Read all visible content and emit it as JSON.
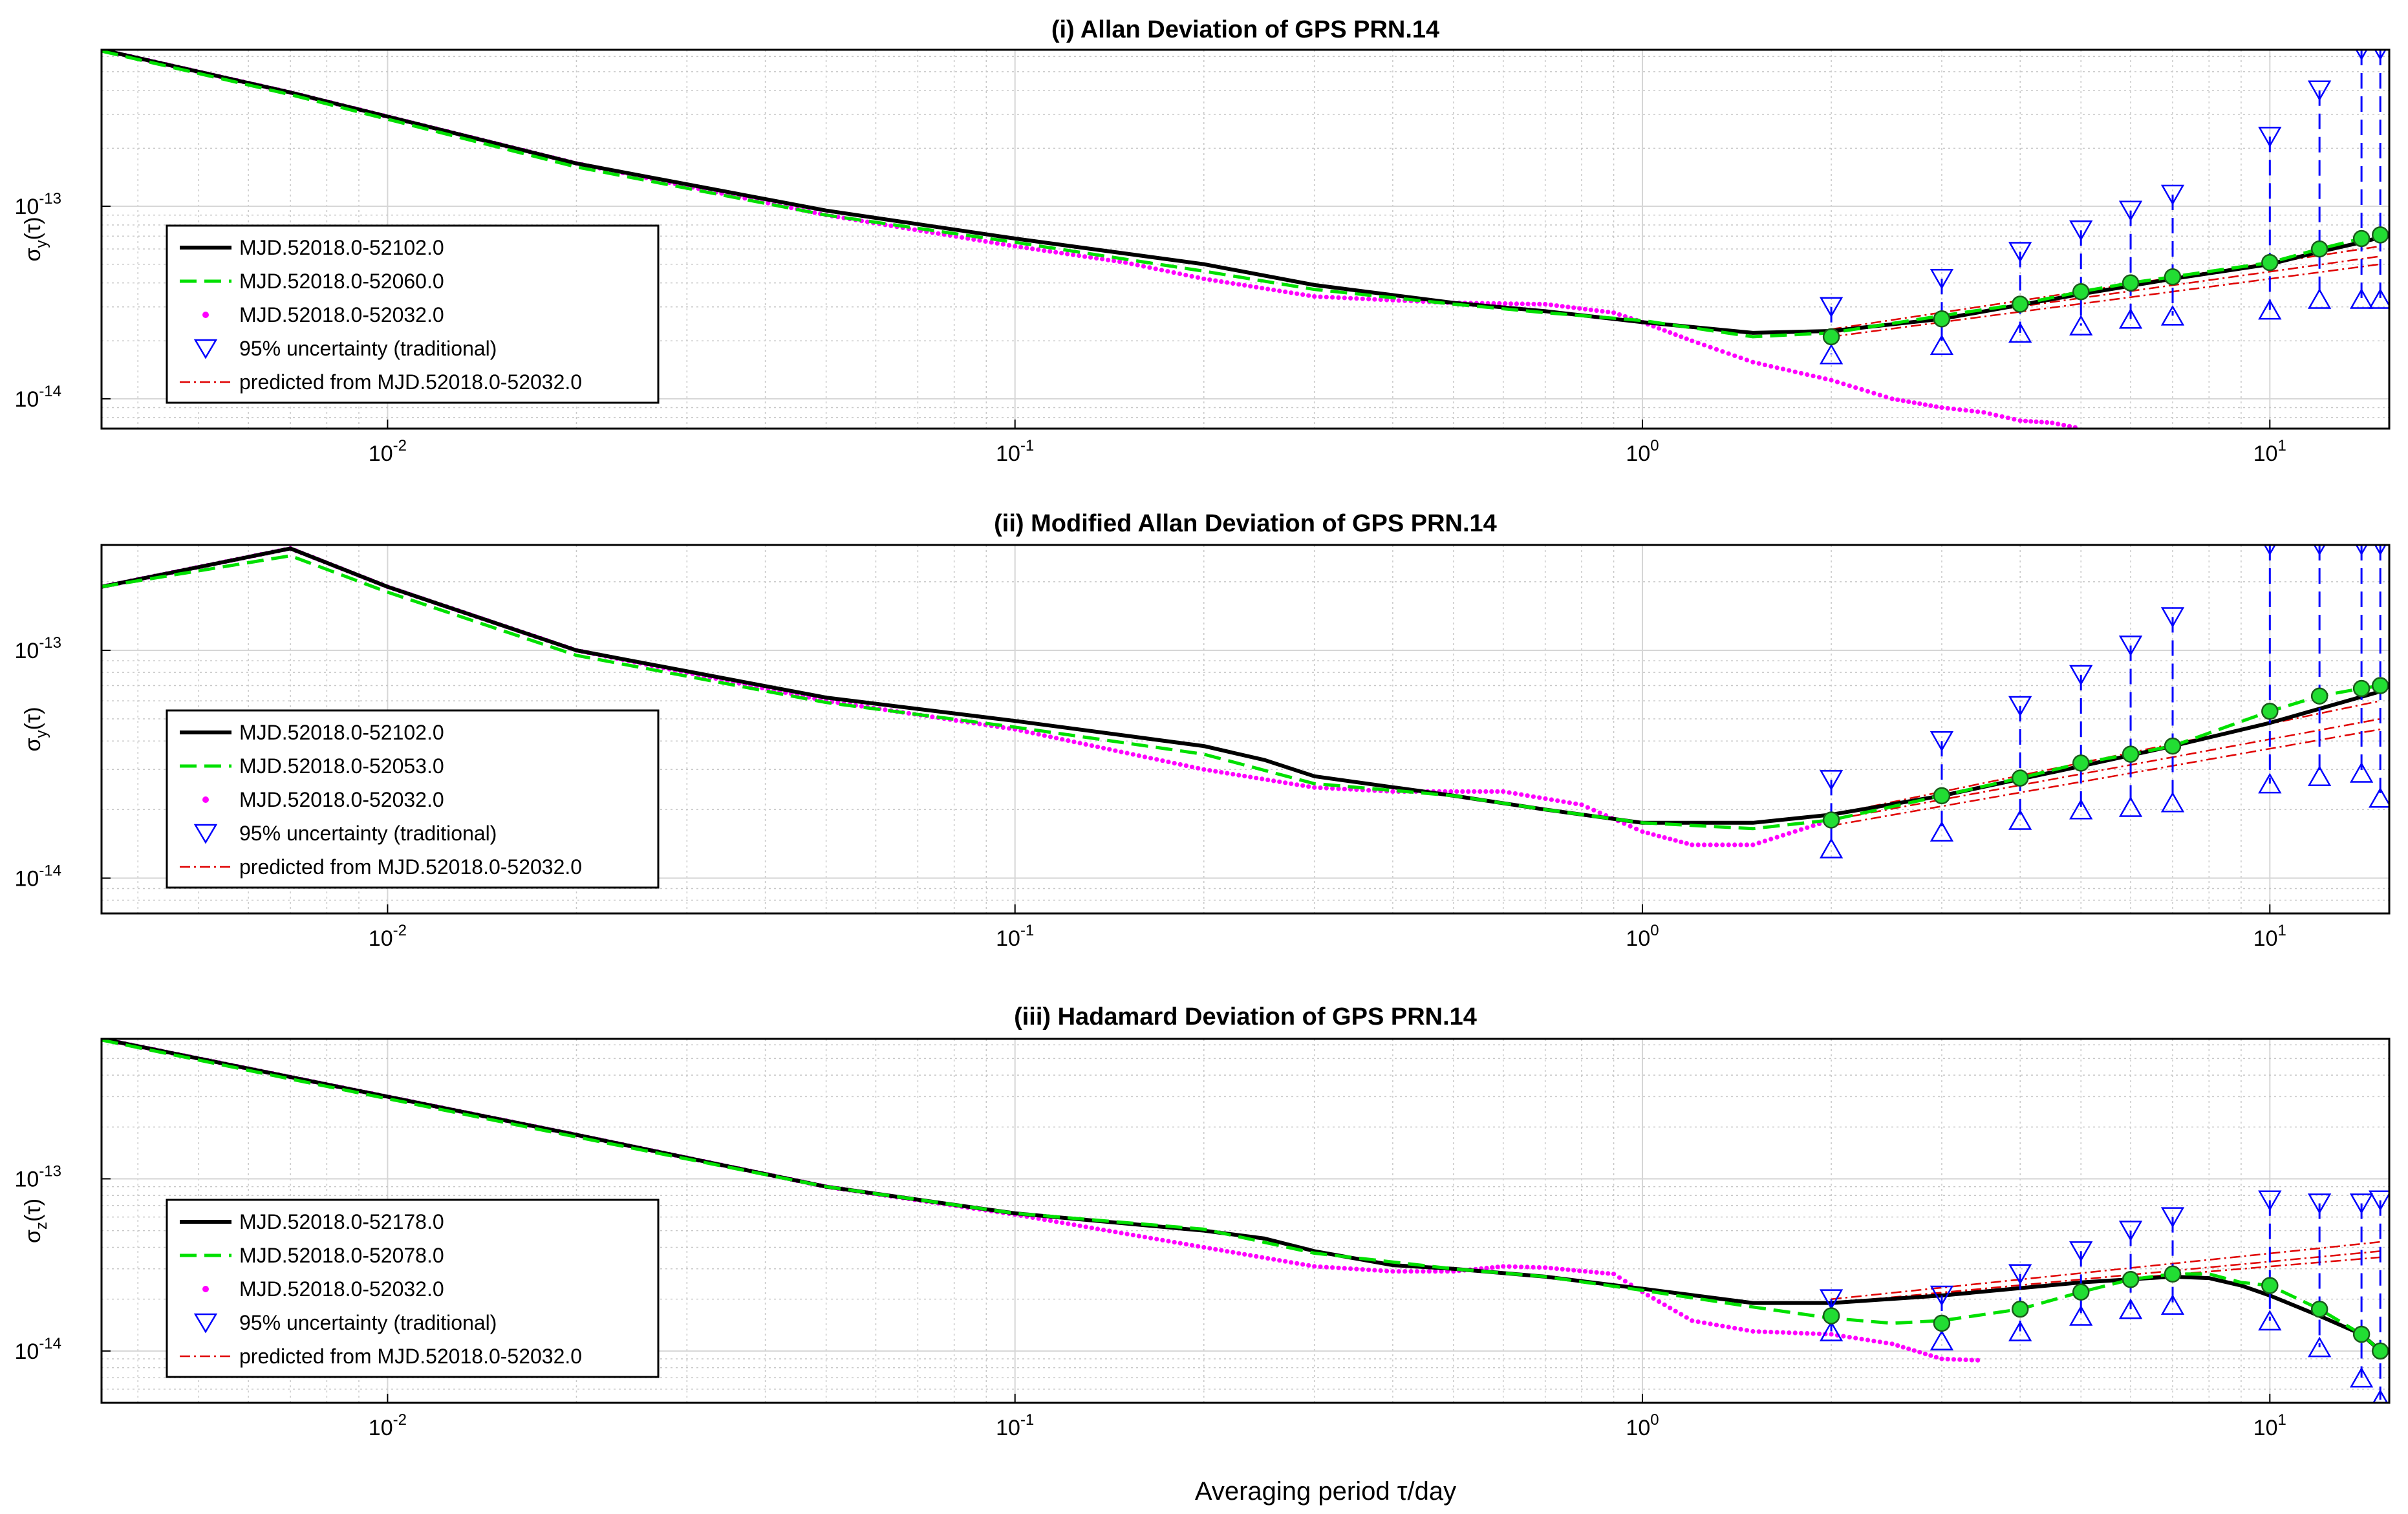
{
  "figure": {
    "xlabel": "Averaging period  τ/day",
    "xlabel_symbol": "τ",
    "x_ticks": [
      {
        "base": "10",
        "exp": "-2"
      },
      {
        "base": "10",
        "exp": "-1"
      },
      {
        "base": "10",
        "exp": "0"
      },
      {
        "base": "10",
        "exp": "1"
      }
    ],
    "y_ticks": [
      {
        "base": "10",
        "exp": "-14"
      },
      {
        "base": "10",
        "exp": "-13"
      }
    ],
    "colors": {
      "long": "#000000",
      "mid": "#00e000",
      "short": "#ff00ff",
      "unc": "#0000ff",
      "pred": "#e00000",
      "marker_fill": "#22dd33"
    }
  },
  "chart_data": [
    {
      "type": "line",
      "title": "(i) Allan Deviation of GPS PRN.14",
      "ylabel": "σy(τ)",
      "ylabel_parts": {
        "sym": "σ",
        "sub": "y",
        "arg": "(τ)"
      },
      "xscale": "log",
      "yscale": "log",
      "xlim": [
        0.0035,
        15.5
      ],
      "ylim": [
        7e-15,
        6.5e-13
      ],
      "grid": true,
      "legend_location": "lower-left",
      "legend": [
        "MJD.52018.0-52102.0",
        "MJD.52018.0-52060.0",
        "MJD.52018.0-52032.0",
        "95% uncertainty (traditional)",
        "predicted from MJD.52018.0-52032.0"
      ],
      "series": [
        {
          "name": "MJD.52018.0-52102.0",
          "style": "solid",
          "x": [
            0.0035,
            0.007,
            0.02,
            0.05,
            0.1,
            0.2,
            0.3,
            0.5,
            0.7,
            1.0,
            1.5,
            2,
            3,
            5,
            7,
            10,
            12,
            14,
            15
          ],
          "y": [
            6.5e-13,
            3.9e-13,
            1.67e-13,
            9.5e-14,
            6.8e-14,
            5e-14,
            3.9e-14,
            3.15e-14,
            2.85e-14,
            2.5e-14,
            2.2e-14,
            2.25e-14,
            2.6e-14,
            3.5e-14,
            4.2e-14,
            5e-14,
            5.8e-14,
            6.5e-14,
            6.9e-14
          ]
        },
        {
          "name": "MJD.52018.0-52060.0",
          "style": "dashed",
          "x": [
            0.0035,
            0.007,
            0.02,
            0.05,
            0.1,
            0.2,
            0.3,
            0.5,
            0.7,
            1.0,
            1.5,
            2,
            3,
            4,
            5,
            6,
            7,
            10,
            12,
            14,
            15
          ],
          "y": [
            6.4e-13,
            3.8e-13,
            1.6e-13,
            9e-14,
            6.5e-14,
            4.6e-14,
            3.7e-14,
            3.1e-14,
            2.8e-14,
            2.55e-14,
            2.1e-14,
            2.2e-14,
            2.7e-14,
            3.1e-14,
            3.6e-14,
            4e-14,
            4.3e-14,
            5.1e-14,
            6e-14,
            6.8e-14,
            7.1e-14
          ]
        },
        {
          "name": "MJD.52018.0-52032.0",
          "style": "dots",
          "x": [
            0.0035,
            0.007,
            0.02,
            0.05,
            0.1,
            0.15,
            0.2,
            0.3,
            0.4,
            0.5,
            0.7,
            0.9,
            1.0,
            1.2,
            1.5,
            2,
            2.5,
            3,
            3.5,
            4,
            4.5,
            5
          ],
          "y": [
            6.5e-13,
            3.9e-13,
            1.67e-13,
            9e-14,
            6.2e-14,
            5.1e-14,
            4.2e-14,
            3.4e-14,
            3.25e-14,
            3.15e-14,
            3.1e-14,
            2.8e-14,
            2.5e-14,
            2e-14,
            1.55e-14,
            1.25e-14,
            1e-14,
            9e-15,
            8.5e-15,
            7.7e-15,
            7.5e-15,
            7e-15
          ]
        },
        {
          "name": "predicted from MJD.52018.0-52032.0",
          "style": "dashdot",
          "x": [
            2,
            15
          ],
          "y_lines": [
            [
              2.3e-14,
              6.2e-14
            ],
            [
              2.2e-14,
              5.5e-14
            ],
            [
              2.1e-14,
              5e-14
            ]
          ]
        }
      ],
      "uncertainty": {
        "name": "95% uncertainty (traditional)",
        "x": [
          2,
          3,
          4,
          5,
          6,
          7,
          10,
          12,
          14,
          15
        ],
        "center": [
          2.1e-14,
          2.6e-14,
          3.1e-14,
          3.6e-14,
          4e-14,
          4.3e-14,
          5.1e-14,
          6e-14,
          6.8e-14,
          7.1e-14
        ],
        "upper": [
          3e-14,
          4.2e-14,
          5.8e-14,
          7.5e-14,
          9.5e-14,
          1.15e-13,
          2.3e-13,
          4e-13,
          6.5e-13,
          6.5e-13
        ],
        "lower": [
          1.7e-14,
          1.9e-14,
          2.2e-14,
          2.4e-14,
          2.6e-14,
          2.7e-14,
          2.9e-14,
          3.3e-14,
          3.3e-14,
          3.3e-14
        ]
      }
    },
    {
      "type": "line",
      "title": "(ii) Modified Allan Deviation of GPS PRN.14",
      "ylabel": "σy(τ)",
      "ylabel_parts": {
        "sym": "σ",
        "sub": "y",
        "arg": "(τ)"
      },
      "xscale": "log",
      "yscale": "log",
      "xlim": [
        0.0035,
        15.5
      ],
      "ylim": [
        7e-15,
        2.9e-13
      ],
      "grid": true,
      "legend_location": "lower-left",
      "legend": [
        "MJD.52018.0-52102.0",
        "MJD.52018.0-52053.0",
        "MJD.52018.0-52032.0",
        "95% uncertainty (traditional)",
        "predicted from MJD.52018.0-52032.0"
      ],
      "series": [
        {
          "name": "MJD.52018.0-52102.0",
          "style": "solid",
          "x": [
            0.0035,
            0.007,
            0.01,
            0.02,
            0.05,
            0.1,
            0.2,
            0.25,
            0.3,
            0.5,
            0.7,
            1.0,
            1.5,
            2,
            3,
            5,
            7,
            10,
            15
          ],
          "y": [
            1.9e-13,
            2.8e-13,
            1.9e-13,
            1e-13,
            6.2e-14,
            4.9e-14,
            3.8e-14,
            3.3e-14,
            2.8e-14,
            2.3e-14,
            2e-14,
            1.75e-14,
            1.75e-14,
            1.9e-14,
            2.3e-14,
            3.1e-14,
            3.8e-14,
            4.8e-14,
            6.6e-14
          ]
        },
        {
          "name": "MJD.52018.0-52053.0",
          "style": "dashed",
          "x": [
            0.0035,
            0.007,
            0.01,
            0.02,
            0.05,
            0.1,
            0.2,
            0.3,
            0.5,
            0.7,
            1.0,
            1.5,
            2,
            3,
            4,
            5,
            6,
            7,
            10,
            12,
            14,
            15
          ],
          "y": [
            1.9e-13,
            2.6e-13,
            1.8e-13,
            9.5e-14,
            5.9e-14,
            4.6e-14,
            3.5e-14,
            2.6e-14,
            2.3e-14,
            2e-14,
            1.75e-14,
            1.65e-14,
            1.8e-14,
            2.3e-14,
            2.75e-14,
            3.2e-14,
            3.5e-14,
            3.8e-14,
            5.4e-14,
            6.3e-14,
            6.8e-14,
            7e-14
          ]
        },
        {
          "name": "MJD.52018.0-52032.0",
          "style": "dots",
          "x": [
            0.0035,
            0.007,
            0.01,
            0.02,
            0.05,
            0.1,
            0.2,
            0.3,
            0.4,
            0.6,
            0.8,
            1.0,
            1.2,
            1.5,
            2
          ],
          "y": [
            1.9e-13,
            2.8e-13,
            1.9e-13,
            1e-13,
            6e-14,
            4.5e-14,
            3e-14,
            2.5e-14,
            2.4e-14,
            2.4e-14,
            2.1e-14,
            1.6e-14,
            1.4e-14,
            1.4e-14,
            1.8e-14
          ]
        },
        {
          "name": "predicted from MJD.52018.0-52032.0",
          "style": "dashdot",
          "x": [
            2,
            15
          ],
          "y_lines": [
            [
              1.9e-14,
              6e-14
            ],
            [
              1.8e-14,
              5e-14
            ],
            [
              1.7e-14,
              4.5e-14
            ]
          ]
        }
      ],
      "uncertainty": {
        "name": "95% uncertainty (traditional)",
        "x": [
          2,
          3,
          4,
          5,
          6,
          7,
          10,
          12,
          14,
          15
        ],
        "center": [
          1.8e-14,
          2.3e-14,
          2.75e-14,
          3.2e-14,
          3.5e-14,
          3.8e-14,
          5.4e-14,
          6.3e-14,
          6.8e-14,
          7e-14
        ],
        "upper": [
          2.7e-14,
          4e-14,
          5.7e-14,
          7.8e-14,
          1.05e-13,
          1.4e-13,
          2.9e-13,
          2.9e-13,
          2.9e-13,
          2.9e-13
        ],
        "lower": [
          1.35e-14,
          1.6e-14,
          1.8e-14,
          2e-14,
          2.05e-14,
          2.15e-14,
          2.6e-14,
          2.8e-14,
          2.9e-14,
          2.25e-14
        ]
      }
    },
    {
      "type": "line",
      "title": "(iii) Hadamard Deviation of GPS PRN.14",
      "ylabel": "σz(τ)",
      "ylabel_parts": {
        "sym": "σ",
        "sub": "z",
        "arg": "(τ)"
      },
      "xscale": "log",
      "yscale": "log",
      "xlim": [
        0.0035,
        15.5
      ],
      "ylim": [
        5e-15,
        6.5e-13
      ],
      "grid": true,
      "legend_location": "lower-left",
      "legend": [
        "MJD.52018.0-52178.0",
        "MJD.52018.0-52078.0",
        "MJD.52018.0-52032.0",
        "95% uncertainty (traditional)",
        "predicted from MJD.52018.0-52032.0"
      ],
      "series": [
        {
          "name": "MJD.52018.0-52178.0",
          "style": "solid",
          "x": [
            0.0035,
            0.007,
            0.02,
            0.05,
            0.1,
            0.2,
            0.25,
            0.3,
            0.4,
            0.5,
            0.7,
            1.0,
            1.5,
            2,
            3,
            5,
            7,
            8,
            9,
            10,
            12,
            14,
            15
          ],
          "y": [
            6.5e-13,
            3.9e-13,
            1.8e-13,
            9e-14,
            6.3e-14,
            5e-14,
            4.5e-14,
            3.8e-14,
            3.15e-14,
            3e-14,
            2.7e-14,
            2.3e-14,
            1.9e-14,
            1.9e-14,
            2.1e-14,
            2.5e-14,
            2.7e-14,
            2.65e-14,
            2.4e-14,
            2.1e-14,
            1.6e-14,
            1.25e-14,
            1e-14
          ]
        },
        {
          "name": "MJD.52018.0-52078.0",
          "style": "dashed",
          "x": [
            0.0035,
            0.007,
            0.02,
            0.05,
            0.1,
            0.2,
            0.3,
            0.5,
            0.7,
            1.0,
            1.5,
            2,
            2.5,
            3,
            4,
            5,
            6,
            7,
            8,
            9,
            10,
            12,
            14,
            15
          ],
          "y": [
            6.4e-13,
            3.8e-13,
            1.75e-13,
            9e-14,
            6.3e-14,
            5.1e-14,
            3.7e-14,
            3e-14,
            2.7e-14,
            2.25e-14,
            1.8e-14,
            1.55e-14,
            1.45e-14,
            1.5e-14,
            1.75e-14,
            2.2e-14,
            2.6e-14,
            2.8e-14,
            2.8e-14,
            2.5e-14,
            2.4e-14,
            1.75e-14,
            1.25e-14,
            1e-14
          ]
        },
        {
          "name": "MJD.52018.0-52032.0",
          "style": "dots",
          "x": [
            0.0035,
            0.007,
            0.02,
            0.05,
            0.1,
            0.2,
            0.3,
            0.4,
            0.5,
            0.6,
            0.7,
            0.9,
            1.0,
            1.2,
            1.5,
            2,
            2.5,
            3,
            3.5
          ],
          "y": [
            6.5e-13,
            3.9e-13,
            1.8e-13,
            9e-14,
            6.2e-14,
            4e-14,
            3.1e-14,
            2.9e-14,
            2.9e-14,
            3.1e-14,
            3.05e-14,
            2.8e-14,
            2.2e-14,
            1.5e-14,
            1.3e-14,
            1.25e-14,
            1.1e-14,
            9e-15,
            8.8e-15
          ]
        },
        {
          "name": "predicted from MJD.52018.0-52032.0",
          "style": "dashdot",
          "x": [
            2,
            15
          ],
          "y_lines": [
            [
              2e-14,
              4.3e-14
            ],
            [
              1.9e-14,
              3.8e-14
            ],
            [
              1.9e-14,
              3.5e-14
            ]
          ]
        }
      ],
      "uncertainty": {
        "name": "95% uncertainty (traditional)",
        "x": [
          2,
          3,
          4,
          5,
          6,
          7,
          10,
          12,
          14,
          15
        ],
        "center": [
          1.6e-14,
          1.45e-14,
          1.75e-14,
          2.2e-14,
          2.6e-14,
          2.8e-14,
          2.4e-14,
          1.75e-14,
          1.25e-14,
          1e-14
        ],
        "upper": [
          2e-14,
          2.1e-14,
          2.8e-14,
          3.8e-14,
          5e-14,
          6e-14,
          7.5e-14,
          7.2e-14,
          7.2e-14,
          7.5e-14
        ],
        "lower": [
          1.3e-14,
          1.15e-14,
          1.3e-14,
          1.6e-14,
          1.75e-14,
          1.85e-14,
          1.5e-14,
          1.05e-14,
          7e-15,
          5.2e-15
        ]
      }
    }
  ]
}
